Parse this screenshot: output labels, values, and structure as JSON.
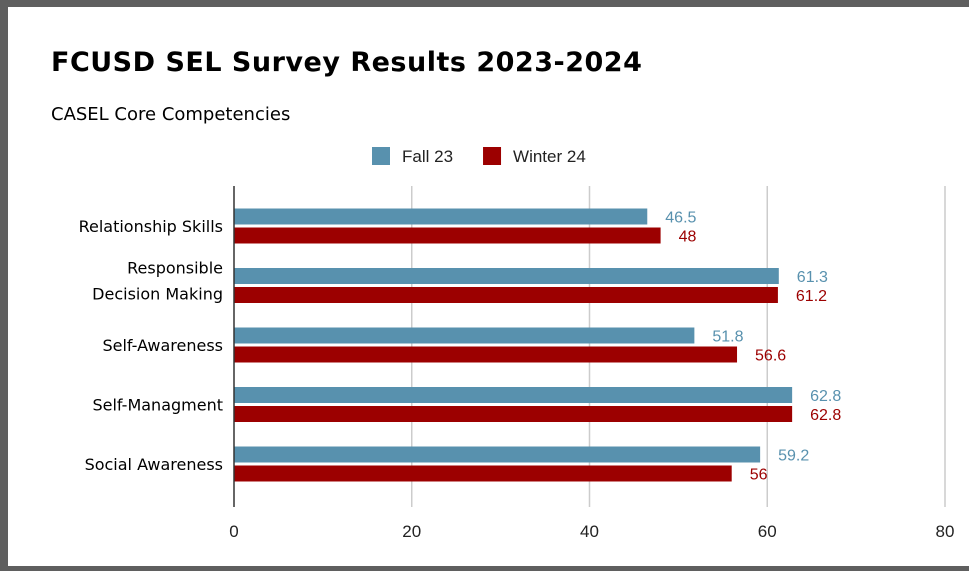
{
  "chart_data": {
    "type": "bar",
    "orientation": "horizontal",
    "title": "FCUSD SEL Survey Results 2023-2024",
    "subtitle": "CASEL Core Competencies",
    "categories": [
      [
        "Relationship Skills"
      ],
      [
        "Responsible",
        "Decision Making"
      ],
      [
        "Self-Awareness"
      ],
      [
        "Self-Managment"
      ],
      [
        "Social Awareness"
      ]
    ],
    "series": [
      {
        "name": "Fall 23",
        "color": "#5891ae",
        "values": [
          46.5,
          61.3,
          51.8,
          62.8,
          59.2
        ],
        "labels": [
          "46.5",
          "61.3",
          "51.8",
          "62.8",
          "59.2"
        ]
      },
      {
        "name": "Winter 24",
        "color": "#9c0000",
        "values": [
          48,
          61.2,
          56.6,
          62.8,
          56
        ],
        "labels": [
          "48",
          "61.2",
          "56.6",
          "62.8",
          "56"
        ]
      }
    ],
    "xlim": [
      0,
      80
    ],
    "xticks": [
      "0",
      "20",
      "40",
      "60",
      "80"
    ],
    "xlabel": "",
    "ylabel": "",
    "grid": true,
    "legend_position": "top-center",
    "data_labels": true
  }
}
